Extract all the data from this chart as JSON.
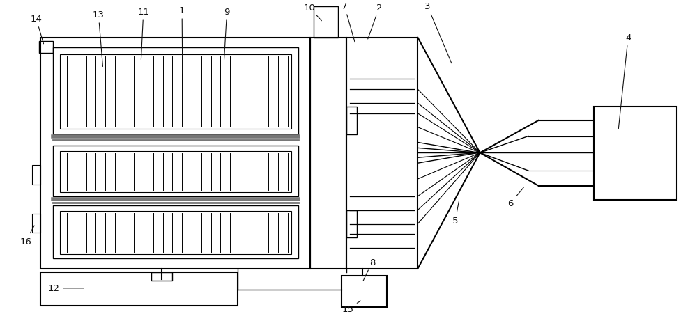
{
  "bg_color": "#ffffff",
  "line_color": "#000000",
  "fig_width": 10.0,
  "fig_height": 4.52,
  "dpi": 100
}
